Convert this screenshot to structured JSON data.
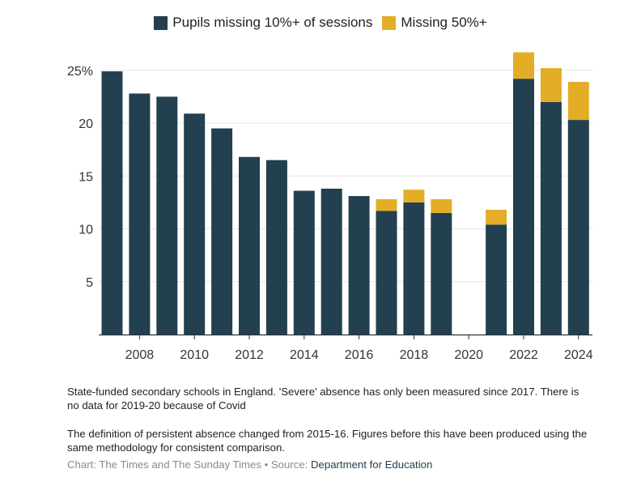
{
  "legend": [
    {
      "label": "Pupils missing 10%+ of sessions",
      "color": "#22404f"
    },
    {
      "label": "Missing 50%+",
      "color": "#e3ad26"
    }
  ],
  "chart_data": {
    "type": "bar",
    "stacked": true,
    "x": [
      2007,
      2008,
      2009,
      2010,
      2011,
      2012,
      2013,
      2014,
      2015,
      2016,
      2017,
      2018,
      2019,
      2020,
      2021,
      2022,
      2023,
      2024
    ],
    "x_tick_labels": [
      "2008",
      "2010",
      "2012",
      "2014",
      "2016",
      "2018",
      "2020",
      "2022",
      "2024"
    ],
    "y_tick_labels": [
      "5",
      "10",
      "15",
      "20",
      "25%"
    ],
    "y_ticks": [
      5,
      10,
      15,
      20,
      25
    ],
    "ylim": [
      0,
      27
    ],
    "grid": true,
    "legend_position": "top-center",
    "series": [
      {
        "name": "Pupils missing 10%+ of sessions",
        "color": "#22404f",
        "values": [
          24.9,
          22.8,
          22.5,
          20.9,
          19.5,
          16.8,
          16.5,
          13.6,
          13.8,
          13.1,
          11.7,
          12.5,
          11.5,
          null,
          10.4,
          24.2,
          22.0,
          20.3
        ]
      },
      {
        "name": "Missing 50%+",
        "color": "#e3ad26",
        "values": [
          null,
          null,
          null,
          null,
          null,
          null,
          null,
          null,
          null,
          null,
          1.1,
          1.2,
          1.3,
          null,
          1.4,
          2.5,
          3.2,
          3.6
        ]
      }
    ]
  },
  "notes": {
    "note1": "State-funded secondary schools in England. 'Severe' absence has only been measured since 2017. There is no data for 2019-20 because of Covid",
    "note2": "The definition of persistent absence changed from 2015-16. Figures before this have been produced using the same methodology for consistent comparison."
  },
  "credit": {
    "chart": "Chart: The Times and The Sunday Times",
    "separator": " • ",
    "source_label": "Source: ",
    "source_link": "Department for Education"
  }
}
